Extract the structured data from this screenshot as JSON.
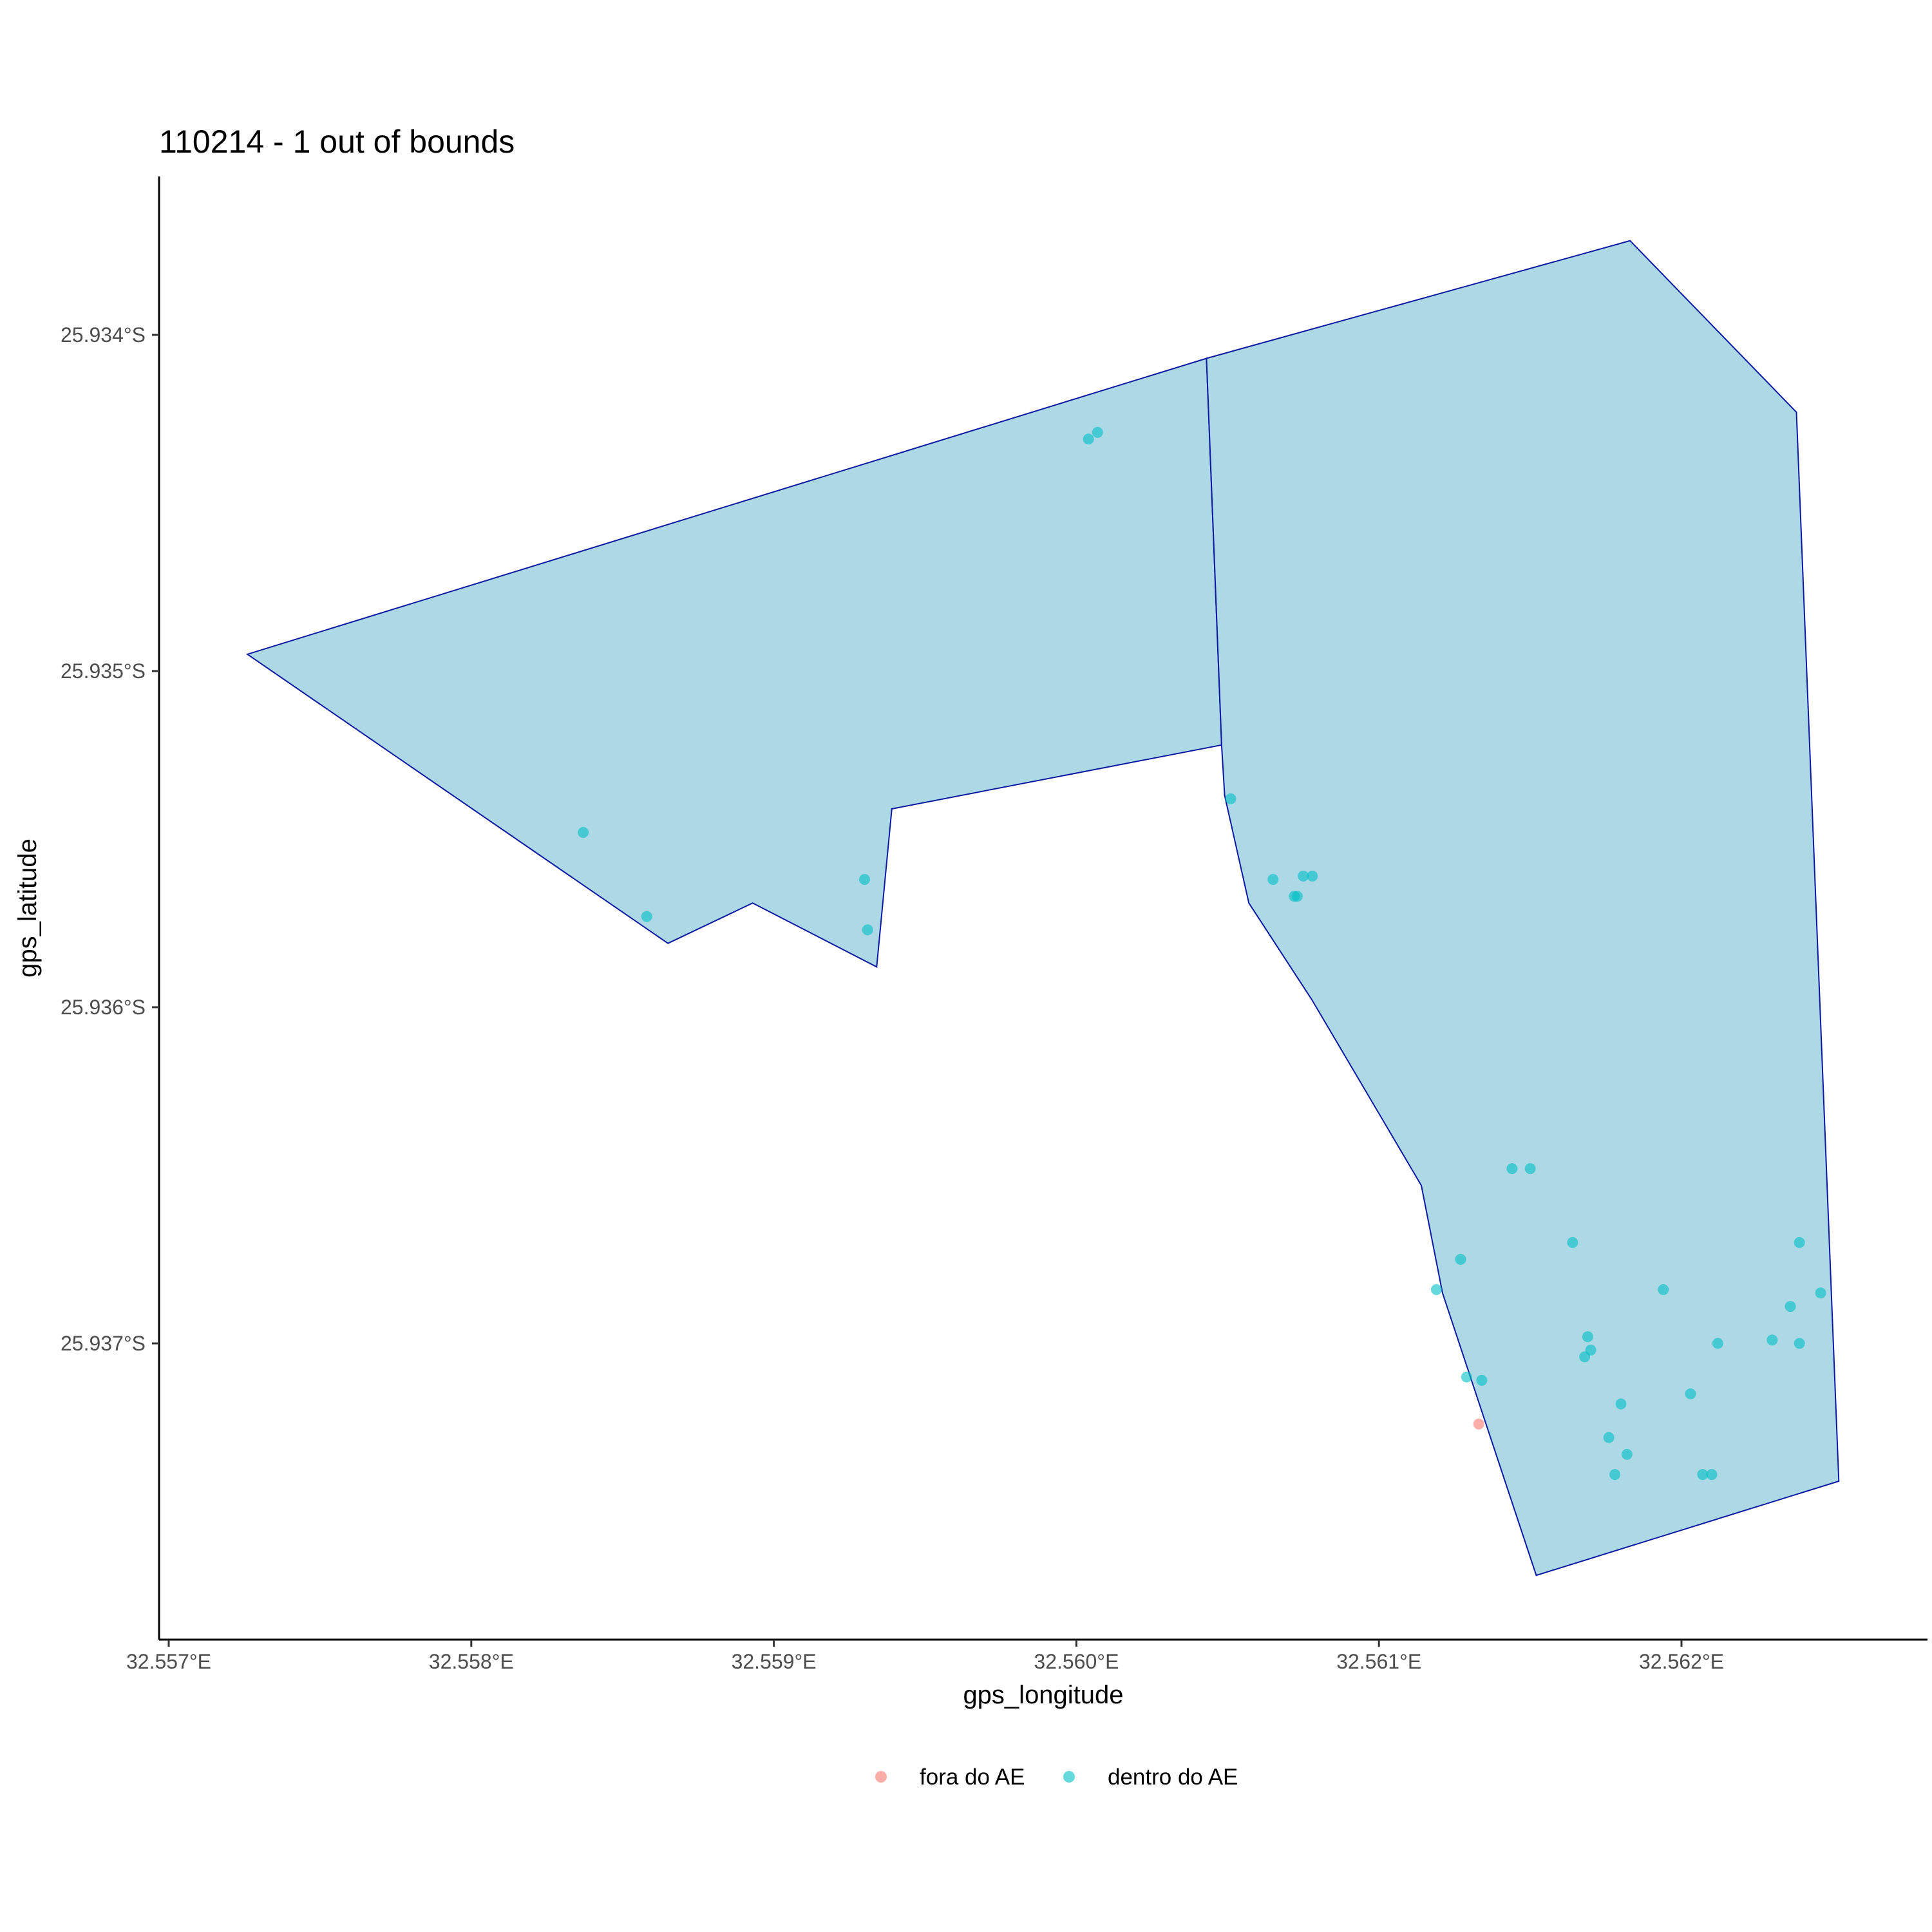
{
  "chart_data": {
    "type": "scatter",
    "title": "110214 - 1 out of bounds",
    "xlabel": "gps_longitude",
    "ylabel": "gps_latitude",
    "xlim": [
      32.557,
      32.5628
    ],
    "ylim": [
      25.93373,
      25.93748
    ],
    "x_ticks": [
      {
        "value": 32.557,
        "label": "32.557°E"
      },
      {
        "value": 32.558,
        "label": "32.558°E"
      },
      {
        "value": 32.559,
        "label": "32.559°E"
      },
      {
        "value": 32.56,
        "label": "32.560°E"
      },
      {
        "value": 32.561,
        "label": "32.561°E"
      },
      {
        "value": 32.562,
        "label": "32.562°E"
      }
    ],
    "y_ticks": [
      {
        "value": 25.934,
        "label": "25.934°S"
      },
      {
        "value": 25.935,
        "label": "25.935°S"
      },
      {
        "value": 25.936,
        "label": "25.936°S"
      },
      {
        "value": 25.937,
        "label": "25.937°S"
      }
    ],
    "polygon_fill": "#add8e6",
    "polygon_stroke": "#0b1aa0",
    "polygons": [
      [
        [
          32.55726,
          25.93495
        ],
        [
          32.56043,
          25.93407
        ],
        [
          32.56048,
          25.93522
        ],
        [
          32.55939,
          25.93541
        ],
        [
          32.55934,
          25.93588
        ],
        [
          32.55893,
          25.93569
        ],
        [
          32.55865,
          25.93581
        ]
      ],
      [
        [
          32.56043,
          25.93407
        ],
        [
          32.56183,
          25.93372
        ],
        [
          32.56238,
          25.93423
        ],
        [
          32.56252,
          25.93741
        ],
        [
          32.56152,
          25.93769
        ],
        [
          32.56121,
          25.93685
        ],
        [
          32.56114,
          25.93653
        ],
        [
          32.56078,
          25.93598
        ],
        [
          32.56057,
          25.93569
        ],
        [
          32.56049,
          25.93537
        ],
        [
          32.56048,
          25.93522
        ]
      ]
    ],
    "legend": {
      "position": "bottom",
      "entries": [
        {
          "label": "fora do AE",
          "color": "#f8766d"
        },
        {
          "label": "dentro do AE",
          "color": "#00bfc4"
        }
      ]
    },
    "series": [
      {
        "name": "fora do AE",
        "color": "#f8766d",
        "points": [
          [
            32.56133,
            25.93724
          ]
        ]
      },
      {
        "name": "dentro do AE",
        "color": "#00bfc4",
        "points": [
          [
            32.56004,
            25.93431
          ],
          [
            32.56007,
            25.93429
          ],
          [
            32.55837,
            25.93548
          ],
          [
            32.55858,
            25.93573
          ],
          [
            32.5593,
            25.93562
          ],
          [
            32.55931,
            25.93577
          ],
          [
            32.56051,
            25.93538
          ],
          [
            32.56065,
            25.93562
          ],
          [
            32.56072,
            25.93567
          ],
          [
            32.56073,
            25.93567
          ],
          [
            32.56075,
            25.93561
          ],
          [
            32.56078,
            25.93561
          ],
          [
            32.56144,
            25.93648
          ],
          [
            32.5615,
            25.93648
          ],
          [
            32.56164,
            25.9367
          ],
          [
            32.56127,
            25.93675
          ],
          [
            32.56119,
            25.93684
          ],
          [
            32.56194,
            25.93684
          ],
          [
            32.56169,
            25.93698
          ],
          [
            32.5617,
            25.93702
          ],
          [
            32.56168,
            25.93704
          ],
          [
            32.56212,
            25.937
          ],
          [
            32.5623,
            25.93699
          ],
          [
            32.56239,
            25.937
          ],
          [
            32.56236,
            25.93689
          ],
          [
            32.56246,
            25.93685
          ],
          [
            32.56239,
            25.9367
          ],
          [
            32.56129,
            25.9371
          ],
          [
            32.56134,
            25.93711
          ],
          [
            32.5618,
            25.93718
          ],
          [
            32.56203,
            25.93715
          ],
          [
            32.56176,
            25.93728
          ],
          [
            32.56182,
            25.93733
          ],
          [
            32.56178,
            25.93739
          ],
          [
            32.56207,
            25.93739
          ],
          [
            32.5621,
            25.93739
          ]
        ]
      }
    ]
  }
}
